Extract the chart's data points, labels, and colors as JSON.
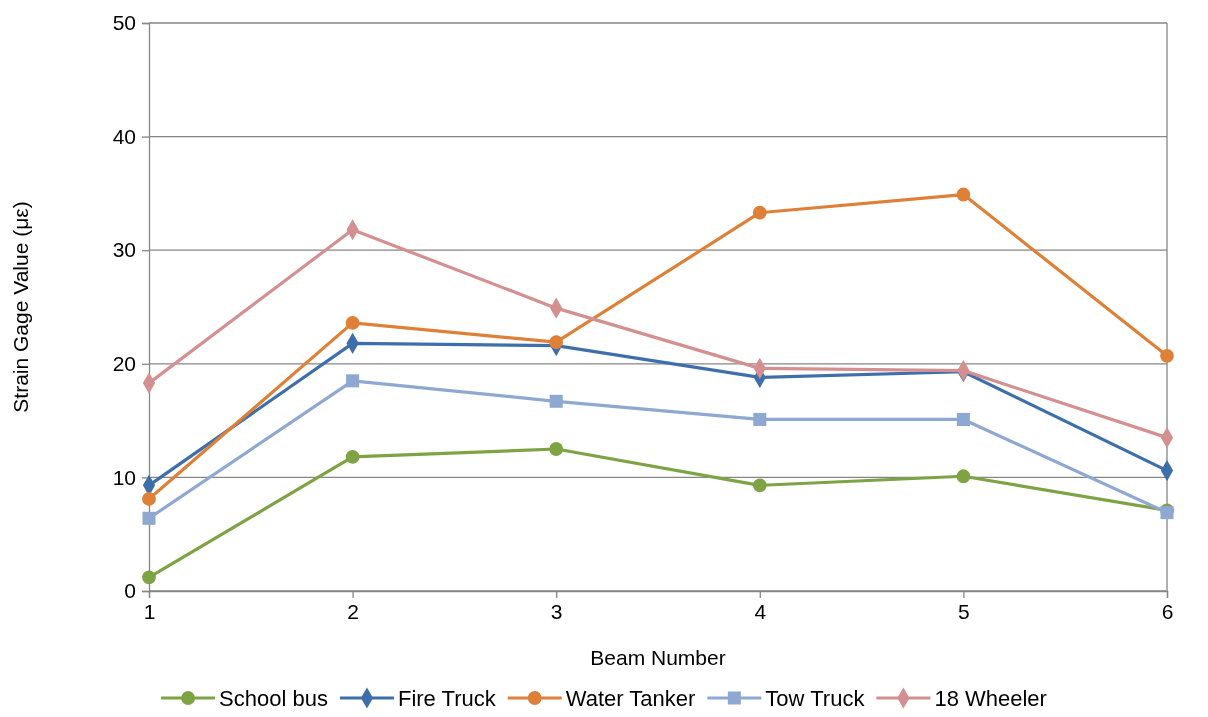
{
  "chart_data": {
    "type": "line",
    "xlabel": "Beam Number",
    "ylabel": "Strain Gage Value (με)",
    "x": [
      1,
      2,
      3,
      4,
      5,
      6
    ],
    "xlim": [
      1,
      6
    ],
    "xticks": [
      1,
      2,
      3,
      4,
      5,
      6
    ],
    "ylim": [
      0,
      50
    ],
    "yticks": [
      0,
      10,
      20,
      30,
      40,
      50
    ],
    "grid": true,
    "legend": "bottom",
    "series": [
      {
        "name": "School bus",
        "color": "#7ea345",
        "marker": "circle",
        "values": [
          1.2,
          11.8,
          12.5,
          9.3,
          10.1,
          7.1
        ]
      },
      {
        "name": "Fire Truck",
        "color": "#3f6fab",
        "marker": "diamond",
        "values": [
          9.3,
          21.8,
          21.6,
          18.8,
          19.3,
          10.6
        ]
      },
      {
        "name": "Water Tanker",
        "color": "#de8037",
        "marker": "circle",
        "values": [
          8.1,
          23.6,
          21.9,
          33.3,
          34.9,
          20.7
        ]
      },
      {
        "name": "Tow Truck",
        "color": "#8fa8d1",
        "marker": "square",
        "values": [
          6.4,
          18.5,
          16.7,
          15.1,
          15.1,
          6.9
        ]
      },
      {
        "name": "18 Wheeler",
        "color": "#d49090",
        "marker": "diamond",
        "values": [
          18.3,
          31.8,
          24.9,
          19.6,
          19.4,
          13.5
        ]
      }
    ]
  }
}
